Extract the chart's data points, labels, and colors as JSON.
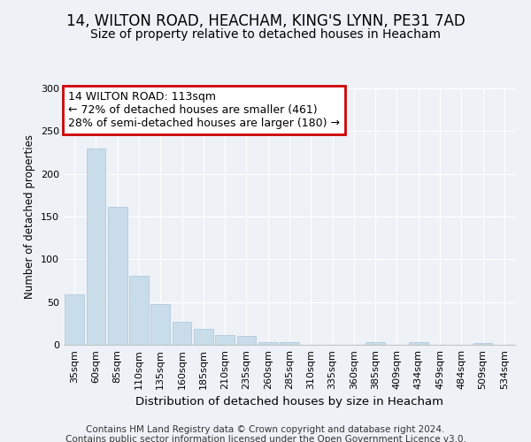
{
  "title1": "14, WILTON ROAD, HEACHAM, KING'S LYNN, PE31 7AD",
  "title2": "Size of property relative to detached houses in Heacham",
  "xlabel": "Distribution of detached houses by size in Heacham",
  "ylabel": "Number of detached properties",
  "categories": [
    "35sqm",
    "60sqm",
    "85sqm",
    "110sqm",
    "135sqm",
    "160sqm",
    "185sqm",
    "210sqm",
    "235sqm",
    "260sqm",
    "285sqm",
    "310sqm",
    "335sqm",
    "360sqm",
    "385sqm",
    "409sqm",
    "434sqm",
    "459sqm",
    "484sqm",
    "509sqm",
    "534sqm"
  ],
  "values": [
    59,
    230,
    161,
    81,
    48,
    27,
    19,
    11,
    10,
    3,
    3,
    0,
    0,
    0,
    3,
    0,
    3,
    0,
    0,
    2,
    0
  ],
  "bar_color": "#c9dcea",
  "bar_edge_color": "#aac4d8",
  "highlight_index": 3,
  "ylim": [
    0,
    300
  ],
  "yticks": [
    0,
    50,
    100,
    150,
    200,
    250,
    300
  ],
  "annotation_text": "14 WILTON ROAD: 113sqm\n← 72% of detached houses are smaller (461)\n28% of semi-detached houses are larger (180) →",
  "annotation_box_facecolor": "#ffffff",
  "annotation_box_edgecolor": "#cc0000",
  "footnote1": "Contains HM Land Registry data © Crown copyright and database right 2024.",
  "footnote2": "Contains public sector information licensed under the Open Government Licence v3.0.",
  "background_color": "#eef2f7",
  "grid_color": "#ffffff",
  "title1_fontsize": 12,
  "title2_fontsize": 10,
  "xlabel_fontsize": 9.5,
  "ylabel_fontsize": 8.5,
  "tick_fontsize": 8,
  "annotation_fontsize": 9,
  "footnote_fontsize": 7.5
}
